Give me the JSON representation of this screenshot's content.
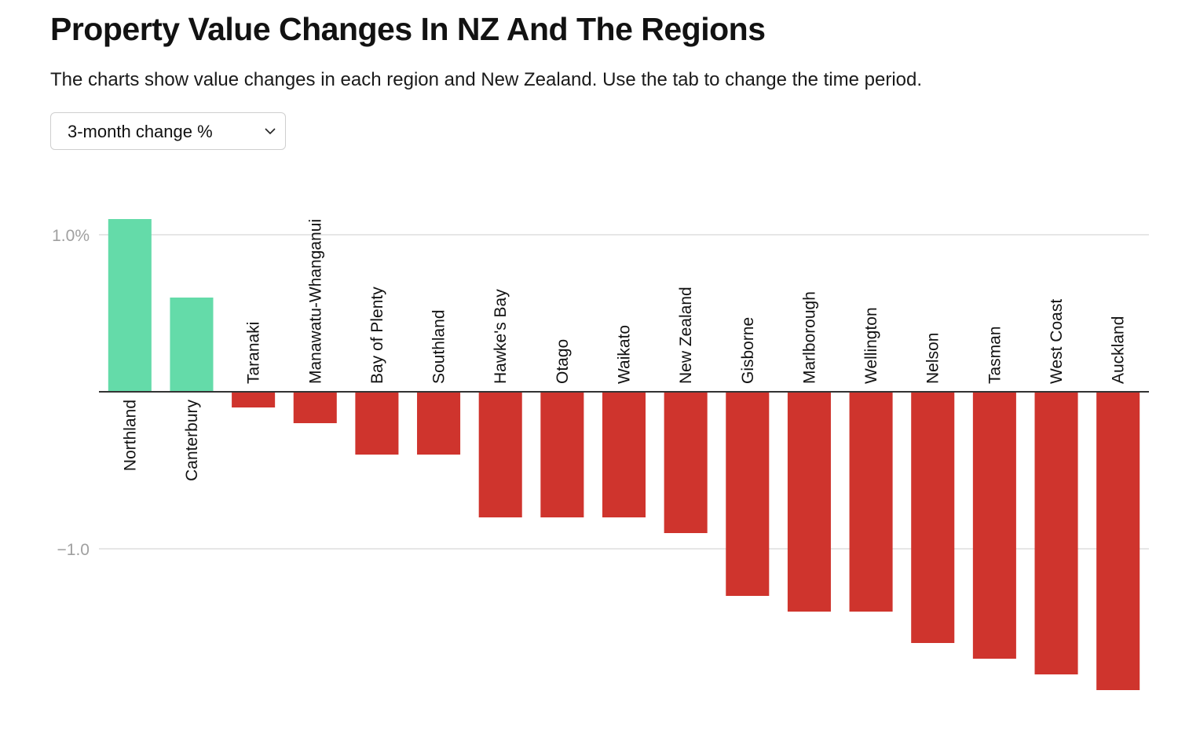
{
  "header": {
    "title": "Property Value Changes In NZ And The Regions",
    "subtitle": "The charts show value changes in each region and New Zealand. Use the tab to change the time period."
  },
  "period_select": {
    "selected": "3-month change %",
    "icon": "chevron-down-icon"
  },
  "colors": {
    "positive": "#64dba9",
    "negative": "#cf342d",
    "axis": "#333333",
    "grid": "#e6e6e6"
  },
  "chart_data": {
    "type": "bar",
    "title": "Property Value Changes In NZ And The Regions",
    "xlabel": "",
    "ylabel": "",
    "categories": [
      "Northland",
      "Canterbury",
      "Taranaki",
      "Manawatu-Whanganui",
      "Bay of Plenty",
      "Southland",
      "Hawke's Bay",
      "Otago",
      "Waikato",
      "New Zealand",
      "Gisborne",
      "Marlborough",
      "Wellington",
      "Nelson",
      "Tasman",
      "West Coast",
      "Auckland"
    ],
    "values": [
      1.1,
      0.6,
      -0.1,
      -0.2,
      -0.4,
      -0.4,
      -0.8,
      -0.8,
      -0.8,
      -0.9,
      -1.3,
      -1.4,
      -1.4,
      -1.6,
      -1.7,
      -1.8,
      -1.9
    ],
    "ylim": [
      -2.0,
      1.1
    ],
    "yticks": [
      {
        "value": 1.0,
        "label": "1.0%"
      },
      {
        "value": -1.0,
        "label": "−1.0"
      }
    ],
    "grid": true,
    "legend": "none"
  }
}
